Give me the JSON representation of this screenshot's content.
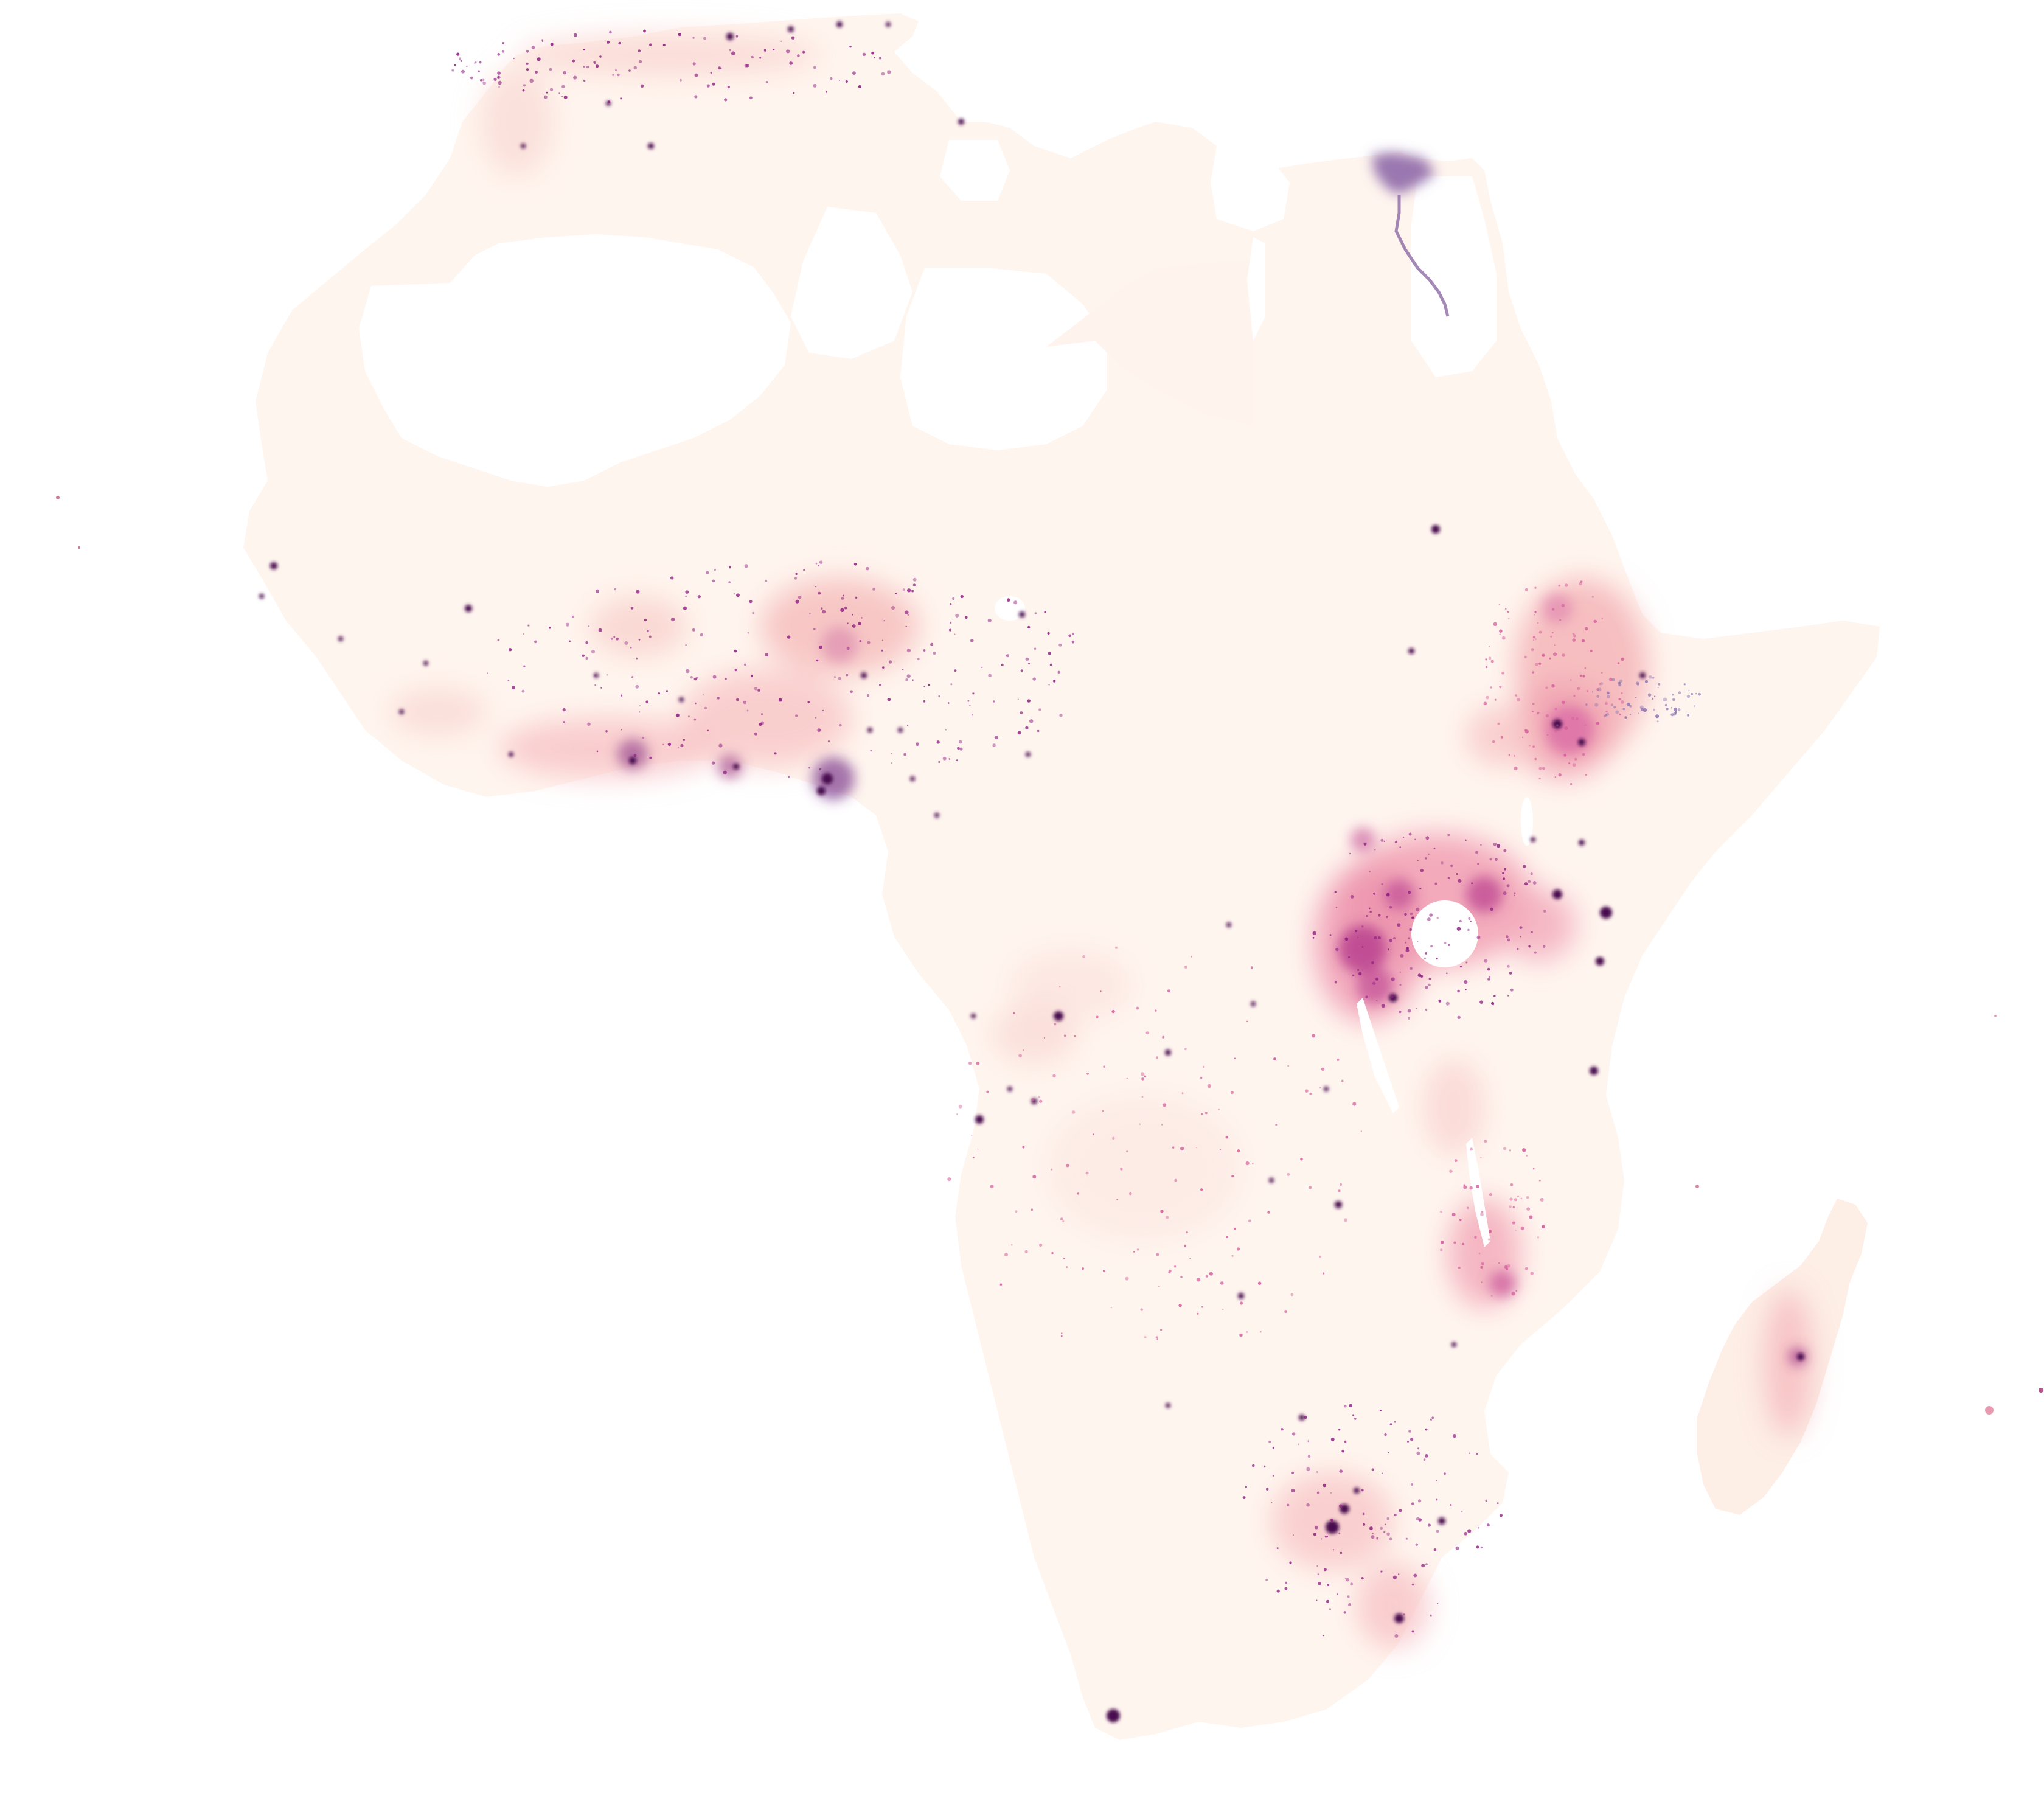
{
  "map": {
    "type": "population-density-choropleth",
    "region": "Africa",
    "colormap": {
      "low": "#fff5ef",
      "mid_low": "#fde0d9",
      "mid": "#f3a5b4",
      "mid_high": "#d45d9b",
      "high": "#8e1f82",
      "highest": "#4a0b4f",
      "background": "#ffffff",
      "sparse_area": "#ffffff"
    },
    "labels": [],
    "legend": null,
    "hotspots": [
      {
        "name": "cairo-nile-delta",
        "intensity": "very-high"
      },
      {
        "name": "nile-valley",
        "intensity": "high"
      },
      {
        "name": "lagos-nigeria",
        "intensity": "very-high"
      },
      {
        "name": "west-african-coast",
        "intensity": "high"
      },
      {
        "name": "ethiopian-highlands",
        "intensity": "medium-high"
      },
      {
        "name": "lake-victoria-basin",
        "intensity": "very-high"
      },
      {
        "name": "great-lakes-rwanda-burundi",
        "intensity": "very-high"
      },
      {
        "name": "nairobi",
        "intensity": "high"
      },
      {
        "name": "malawi",
        "intensity": "medium-high"
      },
      {
        "name": "johannesburg-gauteng",
        "intensity": "very-high"
      },
      {
        "name": "durban",
        "intensity": "high"
      },
      {
        "name": "cape-town",
        "intensity": "very-high"
      },
      {
        "name": "madagascar-highlands",
        "intensity": "medium"
      },
      {
        "name": "kinshasa",
        "intensity": "high"
      },
      {
        "name": "luanda",
        "intensity": "high"
      },
      {
        "name": "maghreb-coast",
        "intensity": "high"
      }
    ]
  }
}
